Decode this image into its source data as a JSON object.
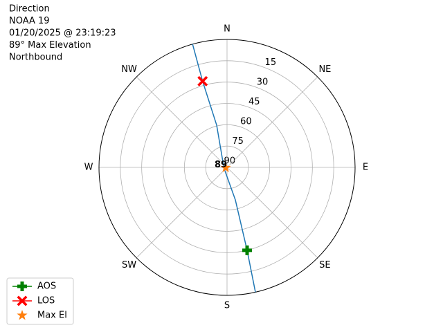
{
  "chart_data": {
    "type": "polar",
    "info_lines": [
      "Direction",
      "NOAA 19",
      "01/20/2025 @ 23:19:23",
      "89° Max Elevation",
      "Northbound"
    ],
    "xlim": [
      0,
      360
    ],
    "xticks": [
      {
        "value": 0,
        "label": "N"
      },
      {
        "value": 45,
        "label": "NE"
      },
      {
        "value": 90,
        "label": "E"
      },
      {
        "value": 135,
        "label": "SE"
      },
      {
        "value": 180,
        "label": "S"
      },
      {
        "value": 225,
        "label": "SW"
      },
      {
        "value": 270,
        "label": "W"
      },
      {
        "value": 315,
        "label": "NW"
      }
    ],
    "ylim": [
      90,
      0
    ],
    "yticks": [
      15,
      30,
      45,
      60,
      75,
      90
    ],
    "grid": true,
    "series": [
      {
        "color": "#1f77b4",
        "marker": "line",
        "x": [
          344.4,
          344.2,
          346.2,
          256,
          165.7,
          166.4,
          167.2
        ],
        "values": [
          0,
          27,
          59.4,
          87.8,
          66.4,
          30,
          0
        ]
      },
      {
        "name": "AOS",
        "color": "#008000",
        "marker": "plus",
        "x": [
          166.4
        ],
        "values": [
          30
        ]
      },
      {
        "name": "LOS",
        "color": "#ff0000",
        "marker": "x",
        "x": [
          344.2
        ],
        "values": [
          27
        ]
      },
      {
        "name": "Max El",
        "color": "#ff7f0e",
        "marker": "star",
        "x": [
          256
        ],
        "values": [
          89
        ]
      }
    ],
    "annotation": "89",
    "legend": "lower left"
  }
}
